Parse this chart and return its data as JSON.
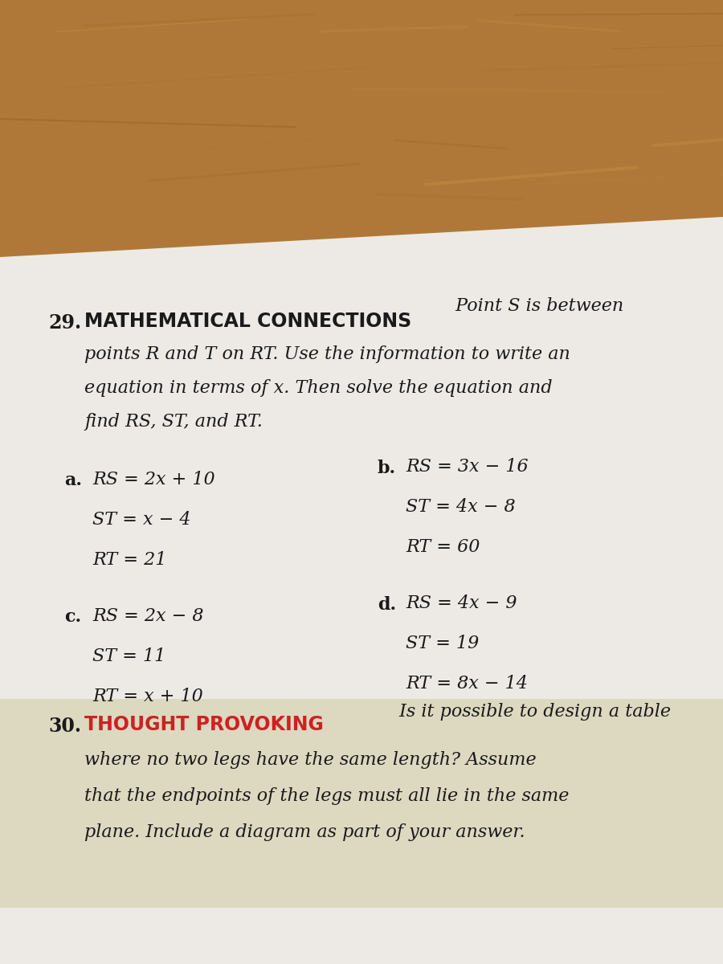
{
  "bg_wood_color": "#b8834a",
  "paper_color": "#edeae4",
  "paper2_color": "#e0ddd5",
  "problem29_num": "29.",
  "problem29_title_bold": "MATHEMATICAL CONNECTIONS",
  "part_a_label": "a.",
  "part_a_line1": "RS = 2x + 10",
  "part_a_line2": "ST = x − 4",
  "part_a_line3": "RT = 21",
  "part_b_label": "b.",
  "part_b_line1": "RS = 3x − 16",
  "part_b_line2": "ST = 4x − 8",
  "part_b_line3": "RT = 60",
  "part_c_label": "c.",
  "part_c_line1": "RS = 2x − 8",
  "part_c_line2": "ST = 11",
  "part_c_line3": "RT = x + 10",
  "part_d_label": "d.",
  "part_d_line1": "RS = 4x − 9",
  "part_d_line2": "ST = 19",
  "part_d_line3": "RT = 8x − 14",
  "problem30_num": "30.",
  "problem30_title_bold": "THOUGHT PROVOKING",
  "problem30_title_color": "#cc2222",
  "text_color": "#1a1a1a",
  "wood_dark": "#8a5a20",
  "wood_mid": "#b07830",
  "wood_light": "#d09848"
}
